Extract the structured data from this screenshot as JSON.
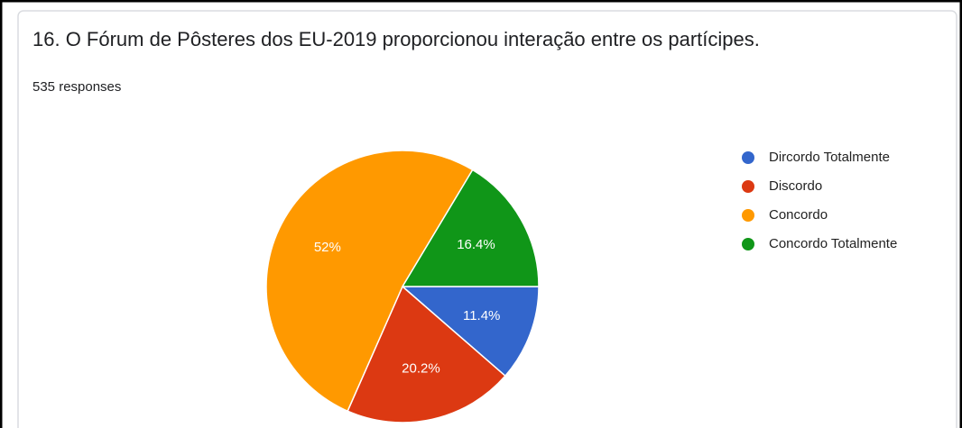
{
  "chart_data": {
    "type": "pie",
    "title": "16. O Fórum de Pôsteres dos EU-2019 proporcionou interação entre os partícipes.",
    "subtitle": "535 responses",
    "categories": [
      "Dircordo Totalmente",
      "Discordo",
      "Concordo",
      "Concordo Totalmente"
    ],
    "values": [
      11.4,
      20.2,
      52,
      16.4
    ],
    "value_labels": [
      "11.4%",
      "20.2%",
      "52%",
      "16.4%"
    ],
    "colors": [
      "#3366cc",
      "#dc3912",
      "#ff9900",
      "#109618"
    ],
    "legend": "right"
  }
}
